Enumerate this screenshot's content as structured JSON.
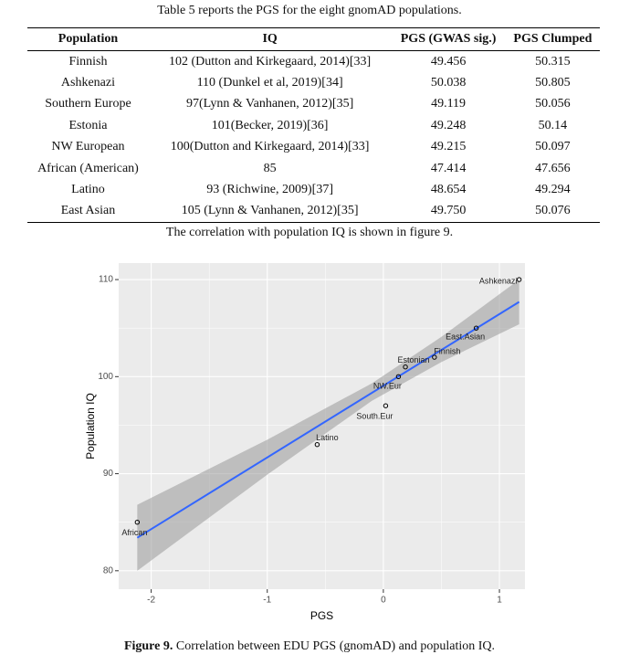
{
  "table_caption": "Table 5 reports the PGS for the eight gnomAD populations.",
  "table": {
    "header": [
      "Population",
      "IQ",
      "PGS (GWAS sig.)",
      "PGS Clumped"
    ],
    "rows": [
      [
        "Finnish",
        "102 (Dutton and Kirkegaard, 2014)[33]",
        "49.456",
        "50.315"
      ],
      [
        "Ashkenazi",
        "110 (Dunkel et al, 2019)[34]",
        "50.038",
        "50.805"
      ],
      [
        "Southern Europe",
        "97(Lynn & Vanhanen, 2012)[35]",
        "49.119",
        "50.056"
      ],
      [
        "Estonia",
        "101(Becker, 2019)[36]",
        "49.248",
        "50.14"
      ],
      [
        "NW European",
        "100(Dutton and Kirkegaard, 2014)[33]",
        "49.215",
        "50.097"
      ],
      [
        "African (American)",
        "85",
        "47.414",
        "47.656"
      ],
      [
        "Latino",
        "93 (Richwine, 2009)[37]",
        "48.654",
        "49.294"
      ],
      [
        "East Asian",
        "105 (Lynn & Vanhanen, 2012)[35]",
        "49.750",
        "50.076"
      ]
    ]
  },
  "body_text": "The correlation with population IQ is shown in figure 9.",
  "chart_data": {
    "type": "scatter",
    "x_label": "PGS",
    "y_label": "Population IQ",
    "labels": [
      "African",
      "Latino",
      "South.Eur",
      "NW.Eur",
      "Estonian",
      "Finnish",
      "East.Asian",
      "Ashkenazi"
    ],
    "x": [
      -2.12,
      -0.57,
      0.02,
      0.13,
      0.19,
      0.44,
      0.8,
      1.17
    ],
    "values": [
      85,
      93,
      97,
      100,
      101,
      102,
      105,
      110
    ],
    "fit": {
      "x": [
        -2.12,
        1.17
      ],
      "values": [
        83.4,
        107.7
      ],
      "color": "#3366ff"
    },
    "band": {
      "x": [
        -2.12,
        -1,
        -0.1,
        0.5,
        1.17
      ],
      "lower": [
        80.0,
        89.9,
        97.5,
        101.5,
        105.4
      ],
      "upper": [
        86.8,
        93.5,
        99.3,
        104.1,
        110.0
      ],
      "color": "#999999"
    },
    "xlim": [
      -2.28,
      1.22
    ],
    "ylim": [
      78.1,
      111.7
    ],
    "xticks": [
      -2,
      -1,
      0,
      1
    ],
    "yticks": [
      80,
      90,
      100,
      110
    ],
    "x_minor_grid": [
      -1.5,
      -0.5,
      0.5
    ],
    "y_minor_grid": [
      85,
      95,
      105
    ],
    "grid": true
  },
  "figure_caption": {
    "label": "Figure 9.",
    "text": " Correlation between EDU PGS (gnomAD) and population IQ."
  }
}
